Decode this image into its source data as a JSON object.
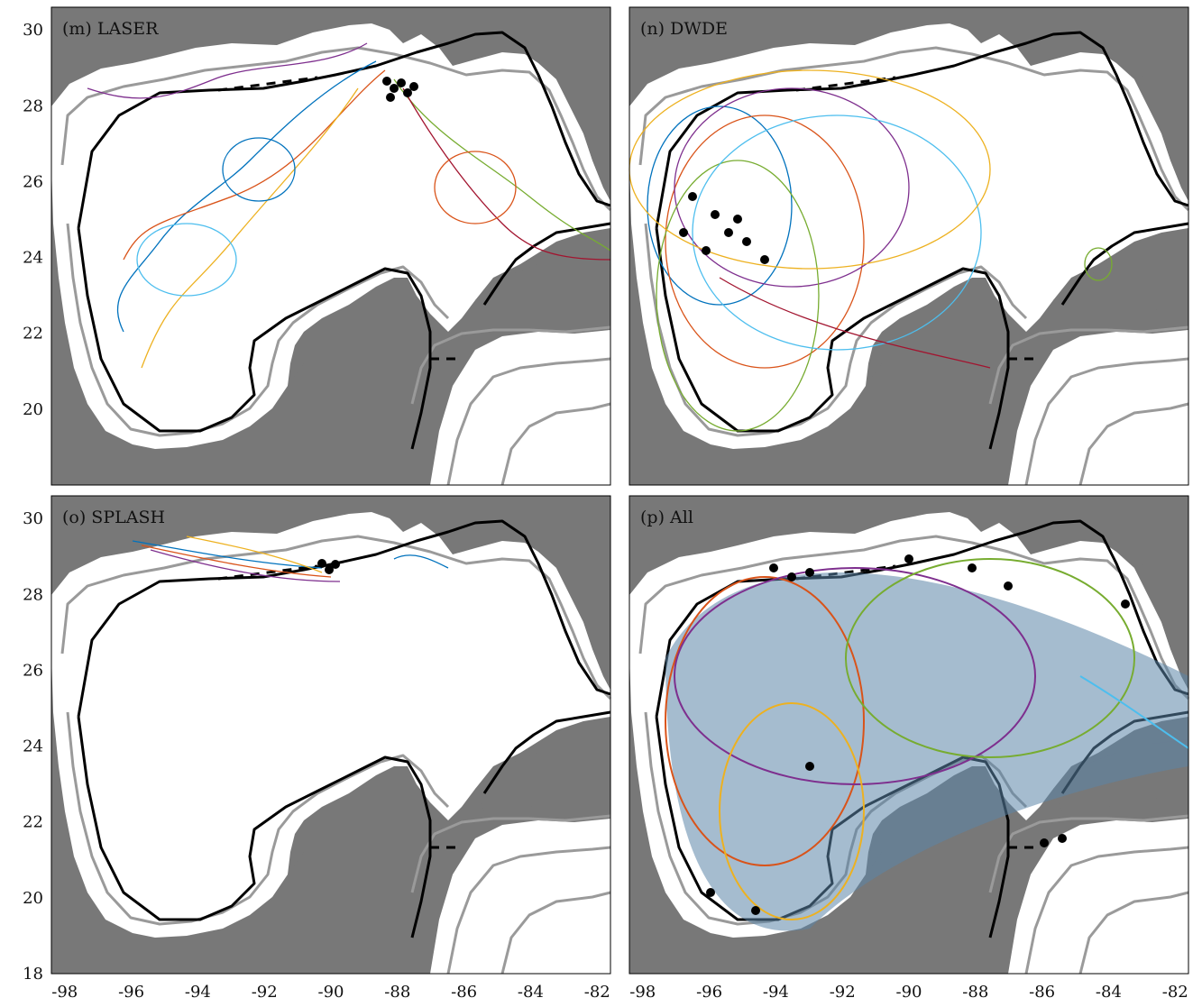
{
  "panels": [
    {
      "label": "(m) LASER"
    },
    {
      "label": "(n) DWDE"
    },
    {
      "label": "(o) SPLASH"
    },
    {
      "label": "(p) All"
    }
  ],
  "axes": {
    "x_ticks": [
      "-98",
      "-96",
      "-94",
      "-92",
      "-90",
      "-88",
      "-86",
      "-84",
      "-82"
    ],
    "y_ticks": [
      "30",
      "28",
      "26",
      "24",
      "22",
      "20",
      "18"
    ]
  },
  "colors": {
    "land": "#787878",
    "ocean": "#ffffff",
    "contour_gray": "#9a9a9a",
    "contour_black": "#000000",
    "drifter_start": "#000000",
    "trajectory_palette": [
      "#0072BD",
      "#D95319",
      "#EDB120",
      "#7E2F8E",
      "#77AC30",
      "#4DBEEE",
      "#A2142F"
    ]
  }
}
